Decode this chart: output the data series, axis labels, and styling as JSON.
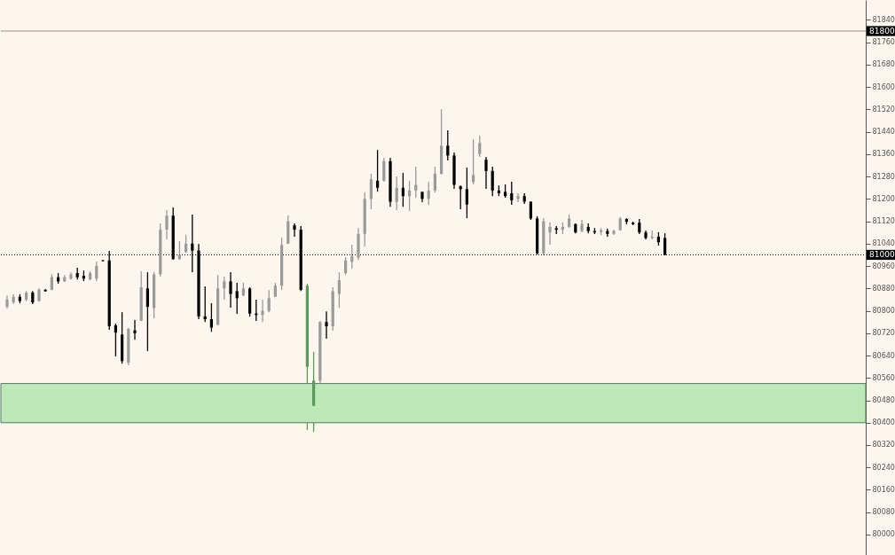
{
  "chart_data": {
    "type": "candlestick",
    "categories": [
      null,
      null,
      null,
      null,
      null,
      null,
      null,
      null,
      null,
      null,
      null,
      null,
      null,
      null,
      null,
      null,
      null,
      null,
      null,
      null,
      null,
      null,
      null,
      null,
      null,
      null,
      null,
      null,
      null,
      null,
      null,
      null,
      null,
      null,
      null,
      null,
      null,
      null,
      null,
      null,
      null,
      null,
      null,
      null,
      null,
      null,
      null,
      null,
      null,
      null,
      null,
      null,
      null,
      null,
      null,
      null,
      null,
      null,
      null,
      null,
      null,
      null,
      null,
      null,
      null,
      null,
      null,
      null,
      null,
      null,
      null,
      null,
      null,
      null,
      null,
      null,
      null,
      null,
      null,
      null,
      null,
      null,
      null,
      null,
      null,
      null,
      null,
      null,
      null,
      null,
      null,
      null,
      null,
      null,
      null,
      null,
      null,
      null,
      null,
      null,
      null,
      null,
      null,
      null,
      null,
      null,
      null,
      null,
      null,
      null,
      null,
      null,
      null,
      null,
      null,
      null,
      null,
      null,
      null,
      null,
      null,
      null,
      null,
      null,
      null,
      null,
      null,
      null,
      null,
      null,
      null,
      null,
      null,
      null,
      null
    ],
    "ohlc": [
      [
        80815,
        80855,
        80808,
        80840
      ],
      [
        80830,
        80859,
        80824,
        80850
      ],
      [
        80850,
        80859,
        80827,
        80835
      ],
      [
        80840,
        80871,
        80833,
        80865
      ],
      [
        80865,
        80871,
        80824,
        80830
      ],
      [
        80835,
        80881,
        80833,
        80875
      ],
      [
        80875,
        80878,
        80868,
        80870
      ],
      [
        80875,
        80931,
        80874,
        80920
      ],
      [
        80920,
        80935,
        80897,
        80905
      ],
      [
        80905,
        80928,
        80903,
        80920
      ],
      [
        80915,
        80938,
        80912,
        80930
      ],
      [
        80935,
        80954,
        80912,
        80920
      ],
      [
        80925,
        80944,
        80906,
        80915
      ],
      [
        80912,
        80941,
        80909,
        80935
      ],
      [
        80915,
        80976,
        80906,
        80960
      ],
      [
        80980,
        80982,
        80976,
        80978
      ],
      [
        80980,
        81014,
        80732,
        80745
      ],
      [
        80748,
        80754,
        80637,
        80722
      ],
      [
        80715,
        80795,
        80611,
        80620
      ],
      [
        80615,
        80738,
        80605,
        80735
      ],
      [
        80730,
        80767,
        80697,
        80720
      ],
      [
        80765,
        80941,
        80763,
        80884
      ],
      [
        80880,
        80938,
        80656,
        80814
      ],
      [
        80810,
        80938,
        80773,
        80930
      ],
      [
        80930,
        81112,
        80922,
        81090
      ],
      [
        81090,
        81160,
        81055,
        81140
      ],
      [
        81140,
        81169,
        80982,
        80985
      ],
      [
        80985,
        81049,
        80982,
        81000
      ],
      [
        81010,
        81071,
        81008,
        81040
      ],
      [
        81040,
        81144,
        80938,
        81015
      ],
      [
        81015,
        81039,
        80770,
        80780
      ],
      [
        80780,
        80887,
        80760,
        80770
      ],
      [
        80770,
        80827,
        80725,
        80740
      ],
      [
        80750,
        80928,
        80748,
        80880
      ],
      [
        80880,
        80922,
        80840,
        80905
      ],
      [
        80905,
        80938,
        80811,
        80860
      ],
      [
        80870,
        80900,
        80789,
        80845
      ],
      [
        80855,
        80900,
        80852,
        80880
      ],
      [
        80880,
        80884,
        80779,
        80790
      ],
      [
        80790,
        80840,
        80764,
        80785
      ],
      [
        80785,
        80840,
        80760,
        80800
      ],
      [
        80800,
        80874,
        80795,
        80845
      ],
      [
        80850,
        80900,
        80849,
        80890
      ],
      [
        80890,
        81061,
        80874,
        81035
      ],
      [
        81040,
        81141,
        81039,
        81120
      ],
      [
        81105,
        81112,
        81065,
        81090
      ],
      [
        81090,
        81103,
        80871,
        80875
      ],
      [
        80890,
        80897,
        80374,
        80600
      ],
      [
        80460,
        80653,
        80367,
        80550
      ],
      [
        80550,
        80763,
        80541,
        80760
      ],
      [
        80760,
        80798,
        80700,
        80745
      ],
      [
        80745,
        80884,
        80729,
        80870
      ],
      [
        80860,
        80938,
        80811,
        80910
      ],
      [
        80935,
        80992,
        80928,
        80980
      ],
      [
        80975,
        81036,
        80951,
        80995
      ],
      [
        80990,
        81096,
        80982,
        81075
      ],
      [
        81075,
        81223,
        81030,
        81200
      ],
      [
        81200,
        81290,
        81163,
        81270
      ],
      [
        81265,
        81375,
        81226,
        81240
      ],
      [
        81265,
        81347,
        81261,
        81335
      ],
      [
        81335,
        81347,
        81172,
        81190
      ],
      [
        81190,
        81280,
        81160,
        81240
      ],
      [
        81240,
        81293,
        81172,
        81210
      ],
      [
        81210,
        81264,
        81157,
        81230
      ],
      [
        81230,
        81315,
        81204,
        81250
      ],
      [
        81225,
        81226,
        81188,
        81200
      ],
      [
        81200,
        81261,
        81179,
        81230
      ],
      [
        81230,
        81315,
        81223,
        81290
      ],
      [
        81290,
        81521,
        81287,
        81390
      ],
      [
        81390,
        81445,
        81337,
        81355
      ],
      [
        81355,
        81366,
        81236,
        81250
      ],
      [
        81245,
        81248,
        81163,
        81235
      ],
      [
        81235,
        81312,
        81131,
        81180
      ],
      [
        81260,
        81413,
        81252,
        81285
      ],
      [
        81360,
        81426,
        81350,
        81400
      ],
      [
        81340,
        81350,
        81236,
        81300
      ],
      [
        81300,
        81315,
        81210,
        81230
      ],
      [
        81230,
        81248,
        81210,
        81220
      ],
      [
        81225,
        81252,
        81204,
        81210
      ],
      [
        81220,
        81261,
        81179,
        81195
      ],
      [
        81200,
        81220,
        81188,
        81210
      ],
      [
        81210,
        81220,
        81182,
        81190
      ],
      [
        81190,
        81191,
        81125,
        81130
      ],
      [
        81130,
        81138,
        81001,
        81005
      ],
      [
        81005,
        81131,
        80998,
        81120
      ],
      [
        81080,
        81116,
        81036,
        81100
      ],
      [
        81095,
        81103,
        81074,
        81090
      ],
      [
        81090,
        81116,
        81074,
        81100
      ],
      [
        81100,
        81144,
        81096,
        81130
      ],
      [
        81110,
        81112,
        81077,
        81080
      ],
      [
        81085,
        81125,
        81081,
        81110
      ],
      [
        81100,
        81112,
        81077,
        81085
      ],
      [
        81085,
        81096,
        81074,
        81080
      ],
      [
        81082,
        81096,
        81071,
        81088
      ],
      [
        81085,
        81093,
        81065,
        81075
      ],
      [
        81075,
        81090,
        81071,
        81085
      ],
      [
        81088,
        81135,
        81087,
        81130
      ],
      [
        81128,
        81131,
        81109,
        81118
      ],
      [
        81115,
        81119,
        81106,
        81110
      ],
      [
        81115,
        81128,
        81074,
        81080
      ],
      [
        81080,
        81087,
        81055,
        81060
      ],
      [
        81060,
        81087,
        81055,
        81065
      ],
      [
        81065,
        81081,
        81033,
        81045
      ],
      [
        81060,
        81077,
        80998,
        81000
      ],
      null,
      null,
      null,
      null,
      null,
      null,
      null,
      null,
      null,
      null,
      null,
      null,
      null,
      null,
      null,
      null,
      null,
      null,
      null,
      null,
      null,
      null,
      null,
      null,
      null,
      null,
      null,
      null,
      null,
      null,
      null
    ],
    "colors": [
      "#9a9a9a",
      "#9a9a9a",
      "#000000",
      "#9a9a9a",
      "#000000",
      "#9a9a9a",
      "#000000",
      "#9a9a9a",
      "#000000",
      "#9a9a9a",
      "#9a9a9a",
      "#000000",
      "#000000",
      "#9a9a9a",
      "#9a9a9a",
      "#000000",
      "#000000",
      "#000000",
      "#000000",
      "#9a9a9a",
      "#000000",
      "#9a9a9a",
      "#000000",
      "#9a9a9a",
      "#9a9a9a",
      "#9a9a9a",
      "#000000",
      "#9a9a9a",
      "#9a9a9a",
      "#000000",
      "#000000",
      "#000000",
      "#000000",
      "#9a9a9a",
      "#9a9a9a",
      "#000000",
      "#000000",
      "#9a9a9a",
      "#000000",
      "#000000",
      "#9a9a9a",
      "#9a9a9a",
      "#9a9a9a",
      "#9a9a9a",
      "#9a9a9a",
      "#000000",
      "#000000",
      "#5a9a5a",
      "#5a9a5a",
      "#9a9a9a",
      "#000000",
      "#9a9a9a",
      "#9a9a9a",
      "#9a9a9a",
      "#9a9a9a",
      "#9a9a9a",
      "#9a9a9a",
      "#9a9a9a",
      "#000000",
      "#9a9a9a",
      "#000000",
      "#9a9a9a",
      "#000000",
      "#9a9a9a",
      "#9a9a9a",
      "#000000",
      "#9a9a9a",
      "#9a9a9a",
      "#9a9a9a",
      "#000000",
      "#000000",
      "#000000",
      "#000000",
      "#9a9a9a",
      "#9a9a9a",
      "#000000",
      "#000000",
      "#000000",
      "#000000",
      "#000000",
      "#9a9a9a",
      "#000000",
      "#000000",
      "#000000",
      "#9a9a9a",
      "#9a9a9a",
      "#000000",
      "#9a9a9a",
      "#9a9a9a",
      "#000000",
      "#9a9a9a",
      "#000000",
      "#000000",
      "#9a9a9a",
      "#000000",
      "#9a9a9a",
      "#9a9a9a",
      "#000000",
      "#000000",
      "#000000",
      "#000000",
      "#9a9a9a",
      "#000000",
      "#000000",
      null,
      null,
      null,
      null,
      null,
      null,
      null,
      null,
      null,
      null,
      null,
      null,
      null,
      null,
      null,
      null,
      null,
      null,
      null,
      null,
      null,
      null,
      null,
      null,
      null,
      null,
      null,
      null,
      null,
      null,
      null
    ],
    "ylim": [
      79927,
      81911
    ],
    "yticks": [
      80000,
      80080,
      80160,
      80240,
      80320,
      80400,
      80480,
      80560,
      80640,
      80720,
      80800,
      80880,
      80960,
      81040,
      81120,
      81200,
      81280,
      81360,
      81440,
      81520,
      81600,
      81680,
      81760,
      81840
    ],
    "tick_labels": "y",
    "grid": false,
    "ref_lines": [
      {
        "axis": "y",
        "value": 81000,
        "label": "81000",
        "color": "#000000",
        "line_style": "dotted"
      },
      {
        "axis": "y",
        "value": 81800,
        "label": "81800",
        "color": "#a08f80",
        "line_style": "solid"
      }
    ],
    "bands": [
      {
        "axis": "y",
        "from": 80400,
        "to": 80540,
        "label": null,
        "color": "#bfe8b8"
      }
    ]
  }
}
